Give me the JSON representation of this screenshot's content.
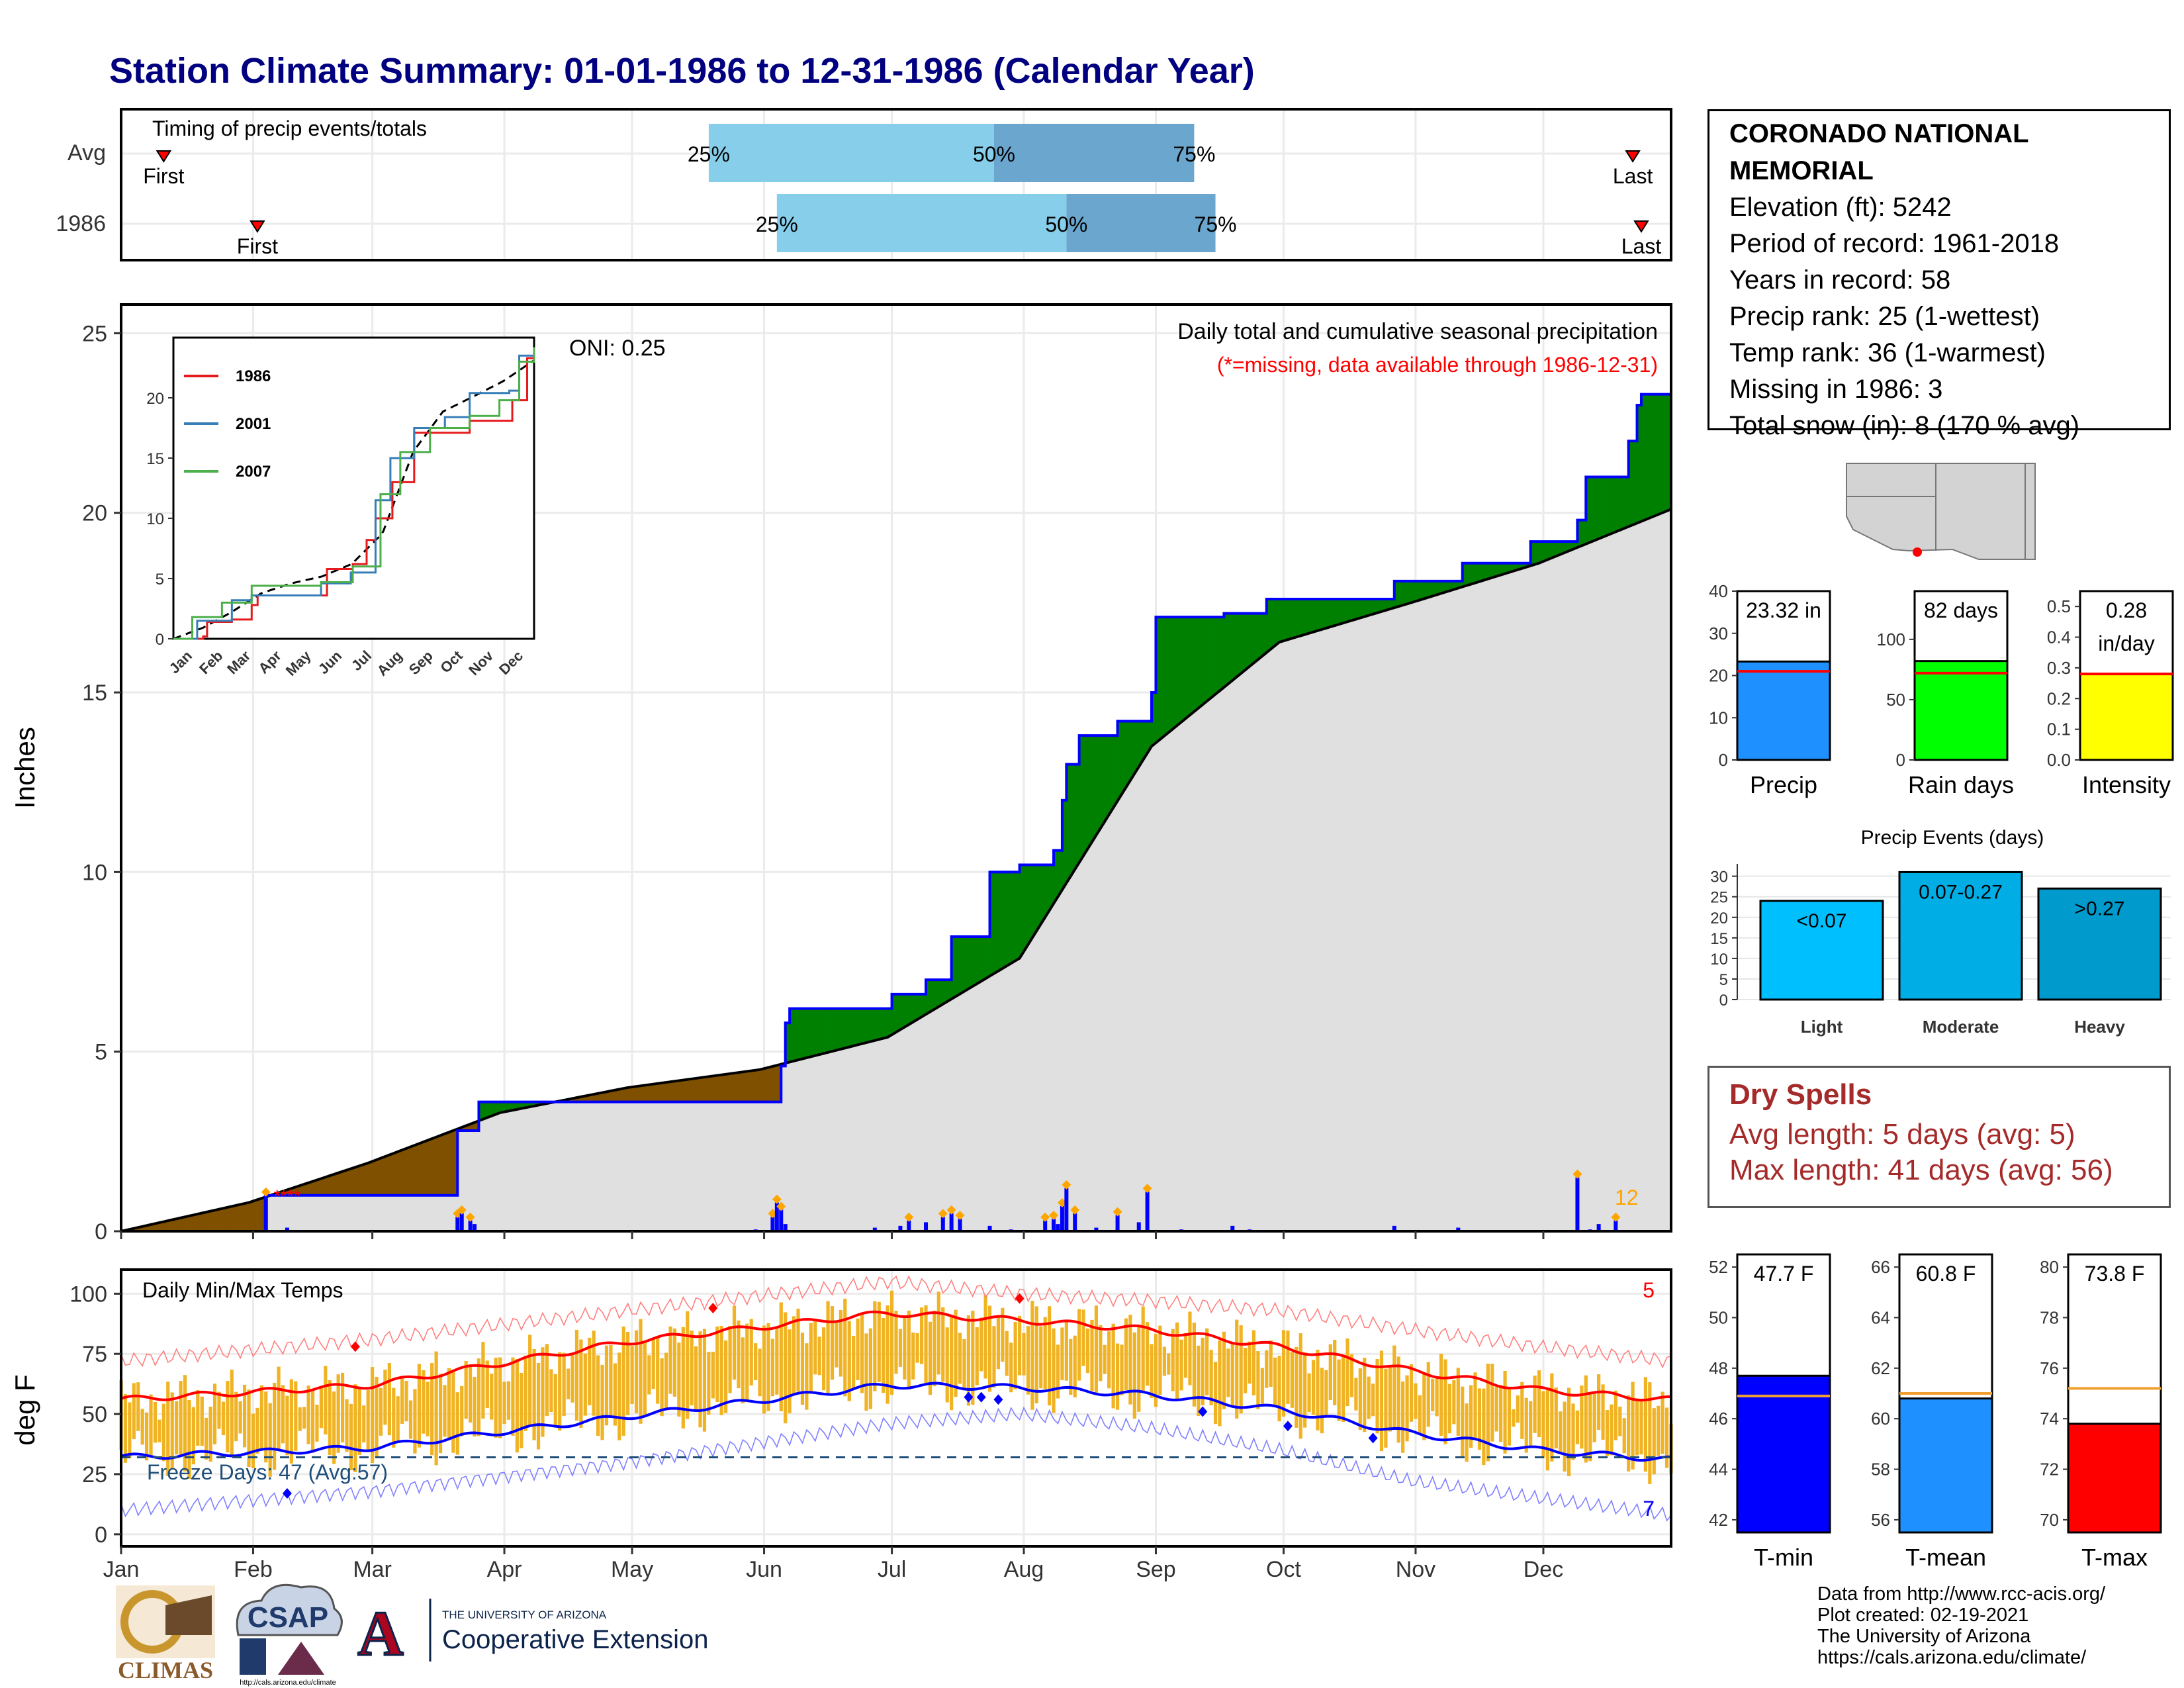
{
  "title": "Station Climate Summary: 01-01-1986 to 12-31-1986 (Calendar Year)",
  "timing_panel": {
    "label": "Timing of precip events/totals",
    "rows": [
      {
        "name": "Avg",
        "first_doy": 11,
        "last_doy": 356,
        "p25": 139,
        "p50": 206,
        "p75": 253,
        "first_label": "First",
        "last_label": "Last"
      },
      {
        "name": "1986",
        "first_doy": 33,
        "last_doy": 358,
        "p25": 155,
        "p50": 223,
        "p75": 258,
        "first_label": "First",
        "last_label": "Last"
      }
    ],
    "pct_labels": [
      "25%",
      "50%",
      "75%"
    ]
  },
  "precip_panel": {
    "y_label": "Inches",
    "oni": "ONI: 0.25",
    "heading": "Daily total and cumulative seasonal precipitation",
    "missing_note": "(*=missing, data available through 1986-12-31)",
    "y_ticks": [
      "0",
      "5",
      "10",
      "15",
      "20",
      "25"
    ],
    "max_day_label": "12",
    "colors": {
      "above": "#008000",
      "below": "#7f5000",
      "normal": "#e0e0e0",
      "observed": "#0000ff"
    }
  },
  "inset": {
    "legend": [
      "1986",
      "2001",
      "2007"
    ],
    "legend_colors": [
      "#e41a1c",
      "#377eb8",
      "#4daf4a"
    ],
    "y_ticks": [
      "0",
      "5",
      "10",
      "15",
      "20"
    ],
    "x_ticks": [
      "Jan",
      "Feb",
      "Mar",
      "Apr",
      "May",
      "Jun",
      "Jul",
      "Aug",
      "Sep",
      "Oct",
      "Nov",
      "Dec"
    ]
  },
  "temp_panel": {
    "y_label": "deg F",
    "heading": "Daily Min/Max Temps",
    "freeze": "Freeze Days: 47 (Avg:57)",
    "top_count": "5",
    "bottom_count": "7",
    "y_ticks": [
      "0",
      "25",
      "50",
      "75",
      "100"
    ],
    "x_ticks": [
      "Jan",
      "Feb",
      "Mar",
      "Apr",
      "May",
      "Jun",
      "Jul",
      "Aug",
      "Sep",
      "Oct",
      "Nov",
      "Dec"
    ]
  },
  "station": {
    "name": "CORONADO NATIONAL MEMORIAL",
    "lines": [
      "Elevation (ft): 5242",
      "Period of record: 1961-2018",
      "Years in record: 58",
      "Precip rank: 25 (1-wettest)",
      "Temp rank: 36 (1-warmest)",
      "Missing in 1986: 3",
      "Total snow (in): 8 (170 % avg)"
    ]
  },
  "summary_bars": [
    {
      "name": "Precip",
      "label": "23.32 in",
      "value": 23.32,
      "avg": 21.0,
      "ylim": [
        0,
        40
      ],
      "ticks": [
        "0",
        "10",
        "20",
        "30",
        "40"
      ],
      "color": "#1e90ff"
    },
    {
      "name": "Rain days",
      "label": "82 days",
      "value": 82,
      "avg": 72,
      "ylim": [
        0,
        140
      ],
      "ticks": [
        "0",
        "50",
        "100"
      ],
      "color": "#00ff00"
    },
    {
      "name": "Intensity",
      "label": "0.28 in/day",
      "value": 0.28,
      "avg": 0.28,
      "ylim": [
        0,
        0.55
      ],
      "ticks": [
        "0.0",
        "0.1",
        "0.2",
        "0.3",
        "0.4",
        "0.5"
      ],
      "color": "#ffff00"
    }
  ],
  "events": {
    "title": "Precip Events (days)",
    "categories": [
      "Light",
      "Moderate",
      "Heavy"
    ],
    "labels": [
      "<0.07",
      "0.07-0.27",
      ">0.27"
    ],
    "values": [
      24,
      31,
      27
    ],
    "ticks": [
      "0",
      "5",
      "10",
      "15",
      "20",
      "25",
      "30"
    ],
    "colors": [
      "#00bfff",
      "#00aee5",
      "#009acd"
    ]
  },
  "dry_spells": {
    "title": "Dry Spells",
    "avg": "Avg length: 5 days (avg: 5)",
    "max": "Max length: 41 days (avg: 56)"
  },
  "temp_bars": [
    {
      "name": "T-min",
      "label": "47.7 F",
      "value": 47.7,
      "avg": 46.9,
      "ylim": [
        41.5,
        52.5
      ],
      "ticks": [
        "42",
        "44",
        "46",
        "48",
        "50",
        "52"
      ],
      "color": "#0000ff"
    },
    {
      "name": "T-mean",
      "label": "60.8 F",
      "value": 60.8,
      "avg": 61.0,
      "ylim": [
        55.5,
        66.5
      ],
      "ticks": [
        "56",
        "58",
        "60",
        "62",
        "64",
        "66"
      ],
      "color": "#1e90ff"
    },
    {
      "name": "T-max",
      "label": "73.8 F",
      "value": 73.8,
      "avg": 75.2,
      "ylim": [
        69.5,
        80.5
      ],
      "ticks": [
        "70",
        "72",
        "74",
        "76",
        "78",
        "80"
      ],
      "color": "#ff0000"
    }
  ],
  "logos": {
    "climas": "CLIMAS",
    "csap": "CSAP",
    "csap_url": "http://cals.arizona.edu/climate",
    "ua_small": "THE UNIVERSITY OF ARIZONA",
    "ua_big": "Cooperative Extension"
  },
  "credits": [
    "Data from http://www.rcc-acis.org/",
    "Plot created: 02-19-2021",
    "The University of Arizona",
    "https://cals.arizona.edu/climate/"
  ],
  "chart_data": [
    {
      "type": "area",
      "title": "Daily total and cumulative seasonal precipitation",
      "ylabel": "Inches",
      "ylim": [
        0,
        25.8
      ],
      "x_categories": [
        "Jan",
        "Feb",
        "Mar",
        "Apr",
        "May",
        "Jun",
        "Jul",
        "Aug",
        "Sep",
        "Oct",
        "Nov",
        "Dec"
      ],
      "series": [
        {
          "name": "1986 cumulative",
          "points": [
            [
              1,
              0
            ],
            [
              34,
              0
            ],
            [
              35,
              1.0
            ],
            [
              59,
              1.0
            ],
            [
              79,
              1.0
            ],
            [
              80,
              2.8
            ],
            [
              85,
              3.6
            ],
            [
              155,
              3.6
            ],
            [
              156,
              4.6
            ],
            [
              157,
              5.8
            ],
            [
              158,
              6.2
            ],
            [
              178,
              6.2
            ],
            [
              182,
              6.6
            ],
            [
              190,
              7.0
            ],
            [
              196,
              8.2
            ],
            [
              205,
              10.0
            ],
            [
              212,
              10.2
            ],
            [
              220,
              10.6
            ],
            [
              222,
              12.0
            ],
            [
              223,
              13.0
            ],
            [
              226,
              13.8
            ],
            [
              235,
              14.2
            ],
            [
              243,
              15.0
            ],
            [
              244,
              17.1
            ],
            [
              260,
              17.2
            ],
            [
              270,
              17.6
            ],
            [
              300,
              18.1
            ],
            [
              316,
              18.6
            ],
            [
              332,
              19.2
            ],
            [
              343,
              19.8
            ],
            [
              345,
              21.0
            ],
            [
              355,
              22.0
            ],
            [
              357,
              23.0
            ],
            [
              358,
              23.3
            ],
            [
              365,
              23.3
            ]
          ]
        },
        {
          "name": "Normal cumulative",
          "points": [
            [
              1,
              0
            ],
            [
              31,
              0.8
            ],
            [
              59,
              1.9
            ],
            [
              90,
              3.3
            ],
            [
              120,
              4.0
            ],
            [
              151,
              4.5
            ],
            [
              181,
              5.4
            ],
            [
              212,
              7.6
            ],
            [
              243,
              13.5
            ],
            [
              273,
              16.4
            ],
            [
              304,
              17.5
            ],
            [
              334,
              18.6
            ],
            [
              365,
              20.1
            ]
          ]
        }
      ],
      "daily_precip": [
        [
          35,
          1.0
        ],
        [
          40,
          0.1
        ],
        [
          80,
          0.4
        ],
        [
          81,
          0.5
        ],
        [
          83,
          0.3
        ],
        [
          84,
          0.2
        ],
        [
          150,
          0.05
        ],
        [
          154,
          0.4
        ],
        [
          155,
          0.8
        ],
        [
          156,
          0.6
        ],
        [
          157,
          0.2
        ],
        [
          178,
          0.1
        ],
        [
          184,
          0.15
        ],
        [
          186,
          0.3
        ],
        [
          190,
          0.25
        ],
        [
          194,
          0.4
        ],
        [
          196,
          0.5
        ],
        [
          198,
          0.35
        ],
        [
          205,
          0.15
        ],
        [
          210,
          0.05
        ],
        [
          218,
          0.3
        ],
        [
          220,
          0.35
        ],
        [
          221,
          0.2
        ],
        [
          222,
          0.7
        ],
        [
          223,
          1.2
        ],
        [
          225,
          0.5
        ],
        [
          230,
          0.1
        ],
        [
          235,
          0.45
        ],
        [
          240,
          0.25
        ],
        [
          242,
          1.1
        ],
        [
          250,
          0.05
        ],
        [
          262,
          0.15
        ],
        [
          266,
          0.05
        ],
        [
          300,
          0.15
        ],
        [
          315,
          0.1
        ],
        [
          343,
          1.5
        ],
        [
          346,
          0.05
        ],
        [
          348,
          0.2
        ],
        [
          352,
          0.3
        ]
      ]
    },
    {
      "type": "line",
      "title": "Daily Min/Max Temps",
      "ylabel": "deg F",
      "ylim": [
        -5,
        110
      ],
      "x_categories": [
        "Jan",
        "Feb",
        "Mar",
        "Apr",
        "May",
        "Jun",
        "Jul",
        "Aug",
        "Sep",
        "Oct",
        "Nov",
        "Dec"
      ],
      "series": [
        {
          "name": "Avg max",
          "points": [
            [
              1,
              56
            ],
            [
              60,
              62
            ],
            [
              120,
              80
            ],
            [
              181,
              92
            ],
            [
              212,
              89
            ],
            [
              243,
              85
            ],
            [
              273,
              78
            ],
            [
              304,
              68
            ],
            [
              334,
              60
            ],
            [
              365,
              56
            ]
          ]
        },
        {
          "name": "Avg min",
          "points": [
            [
              1,
              32
            ],
            [
              60,
              36
            ],
            [
              120,
              49
            ],
            [
              181,
              62
            ],
            [
              212,
              61
            ],
            [
              243,
              58
            ],
            [
              273,
              52
            ],
            [
              304,
              42
            ],
            [
              334,
              35
            ],
            [
              365,
              31
            ]
          ]
        },
        {
          "name": "Record max",
          "points": [
            [
              1,
              72
            ],
            [
              60,
              81
            ],
            [
              120,
              93
            ],
            [
              181,
              105
            ],
            [
              212,
              100
            ],
            [
              243,
              97
            ],
            [
              273,
              93
            ],
            [
              304,
              85
            ],
            [
              334,
              78
            ],
            [
              365,
              72
            ]
          ]
        },
        {
          "name": "Record min",
          "points": [
            [
              1,
              10
            ],
            [
              60,
              18
            ],
            [
              120,
              30
            ],
            [
              181,
              46
            ],
            [
              212,
              50
            ],
            [
              243,
              44
            ],
            [
              273,
              35
            ],
            [
              304,
              22
            ],
            [
              334,
              15
            ],
            [
              365,
              8
            ]
          ]
        },
        {
          "name": "Freeze",
          "points": [
            [
              1,
              32
            ],
            [
              365,
              32
            ]
          ]
        }
      ]
    }
  ]
}
